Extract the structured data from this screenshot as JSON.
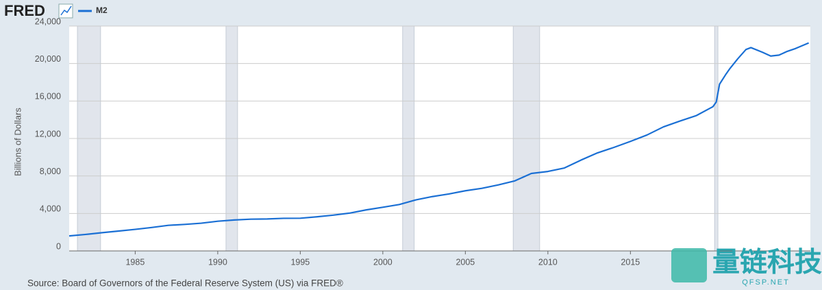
{
  "chart_data": {
    "type": "line",
    "brand": "FRED",
    "ylabel": "Billions of Dollars",
    "source": "Source: Board of Governors of the Federal Reserve System (US) via FRED®",
    "watermark": "量链科技",
    "watermark_sub": "QFSP.NET",
    "grid": true,
    "xlim": [
      1981,
      2025.9
    ],
    "ylim": [
      0,
      24000
    ],
    "xticks": [
      1985,
      1990,
      1995,
      2000,
      2005,
      2010,
      2015
    ],
    "yticks": [
      0,
      {
        "value": 4000,
        "label": "4,000"
      },
      {
        "value": 8000,
        "label": "8,000"
      },
      {
        "value": 12000,
        "label": "12,000"
      },
      {
        "value": 16000,
        "label": "16,000"
      },
      {
        "value": 20000,
        "label": "20,000"
      },
      {
        "value": 24000,
        "label": "24,000"
      }
    ],
    "recessions": [
      [
        1981.5,
        1982.9
      ],
      [
        1990.5,
        1991.2
      ],
      [
        2001.2,
        2001.9
      ],
      [
        2007.9,
        2009.5
      ],
      [
        2020.1,
        2020.3
      ]
    ],
    "x": [
      1981,
      1982,
      1983,
      1984,
      1985,
      1986,
      1987,
      1988,
      1989,
      1990,
      1991,
      1992,
      1993,
      1994,
      1995,
      1996,
      1997,
      1998,
      1999,
      2000,
      2001,
      2002,
      2003,
      2004,
      2005,
      2006,
      2007,
      2008,
      2009,
      2010,
      2011,
      2012,
      2013,
      2014,
      2015,
      2016,
      2017,
      2018,
      2019,
      2020,
      2020.2,
      2020.4,
      2020.8,
      2021,
      2021.5,
      2022,
      2022.3,
      2023,
      2023.5,
      2024,
      2024.5,
      2025,
      2025.8
    ],
    "series": [
      {
        "name": "M2",
        "color": "#1a6fd4",
        "values": [
          1600,
          1760,
          1950,
          2120,
          2300,
          2500,
          2730,
          2830,
          2960,
          3170,
          3300,
          3390,
          3410,
          3480,
          3490,
          3640,
          3820,
          4040,
          4380,
          4660,
          4950,
          5450,
          5800,
          6080,
          6420,
          6680,
          7050,
          7480,
          8270,
          8480,
          8850,
          9690,
          10460,
          11050,
          11690,
          12370,
          13240,
          13860,
          14450,
          15400,
          15900,
          17800,
          18900,
          19400,
          20500,
          21500,
          21700,
          21200,
          20800,
          20900,
          21300,
          21600,
          22200
        ]
      }
    ]
  }
}
